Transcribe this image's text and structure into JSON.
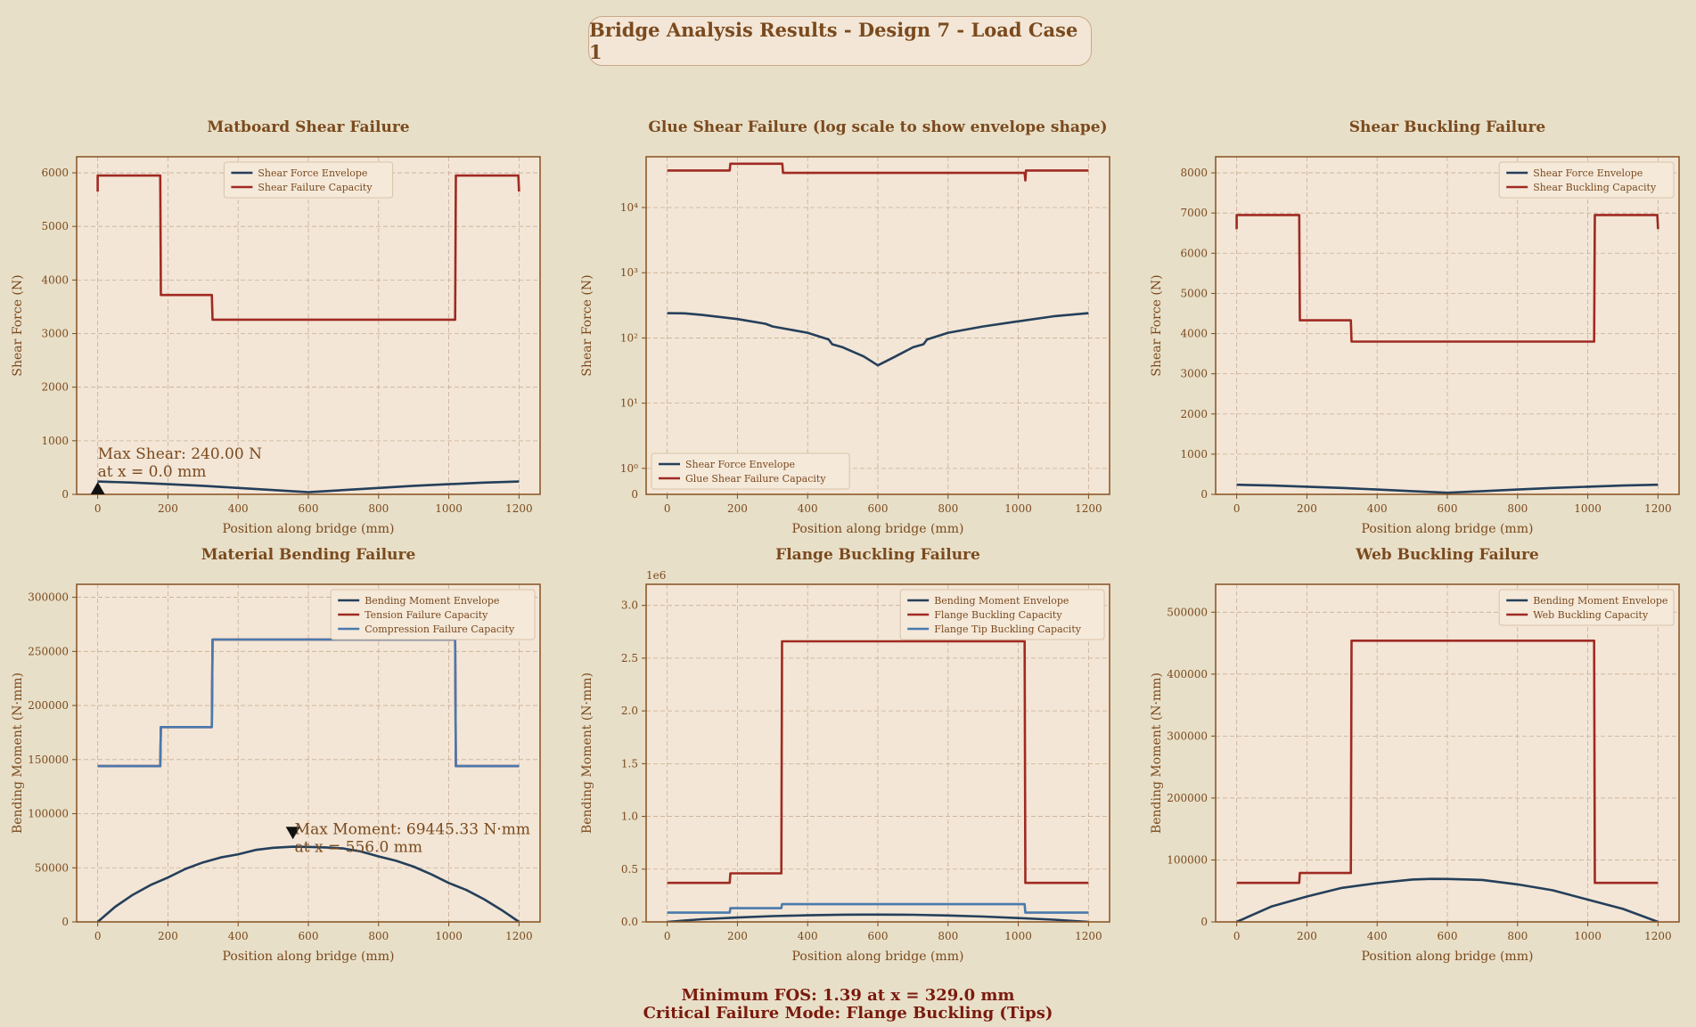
{
  "page": {
    "title": "Bridge Analysis Results - Design 7 - Load Case 1",
    "footer_line1": "Minimum FOS: 1.39 at x = 329.0 mm",
    "footer_line2": "Critical Failure Mode: Flange Buckling (Tips)"
  },
  "colors": {
    "background": "#e8dfc8",
    "plot_background": "#f3e6d6",
    "envelope": "#253f5b",
    "capacity_red": "#a02a22",
    "capacity_blue": "#4a79ad",
    "text": "#7a4a1e",
    "grid": "#c9ae96"
  },
  "chart_data": [
    {
      "id": "matboard-shear",
      "type": "line",
      "title": "Matboard Shear Failure",
      "xlabel": "Position along bridge (mm)",
      "ylabel": "Shear Force (N)",
      "xlim": [
        -60,
        1260
      ],
      "ylim": [
        0,
        6300
      ],
      "xticks": [
        0,
        200,
        400,
        600,
        800,
        1000,
        1200
      ],
      "yticks": [
        0,
        1000,
        2000,
        3000,
        4000,
        5000,
        6000
      ],
      "ytick_labels": [
        "0",
        "1000",
        "2000",
        "3000",
        "4000",
        "5000",
        "6000"
      ],
      "grid": true,
      "legend_position": "top-center",
      "series": [
        {
          "name": "Shear Force Envelope",
          "color": "#253f5b",
          "x": [
            0,
            100,
            200,
            300,
            400,
            500,
            600,
            700,
            800,
            900,
            1000,
            1100,
            1200
          ],
          "y": [
            240,
            220,
            190,
            160,
            120,
            80,
            40,
            80,
            120,
            160,
            190,
            220,
            240
          ]
        },
        {
          "name": "Shear Failure Capacity",
          "color": "#a02a22",
          "x": [
            0,
            0,
            178,
            180,
            325,
            327,
            355,
            357,
            1018,
            1020,
            1198,
            1200
          ],
          "y": [
            5650,
            5950,
            5950,
            3720,
            3720,
            3260,
            3260,
            3260,
            3260,
            5950,
            5950,
            5650
          ]
        }
      ],
      "annotation": {
        "text_line1": "Max Shear: 240.00 N",
        "text_line2": "at x = 0.0 mm",
        "marker": "up",
        "x": 0,
        "y": 0
      }
    },
    {
      "id": "glue-shear",
      "type": "line",
      "title": "Glue Shear Failure (log scale to show envelope shape)",
      "xlabel": "Position along bridge (mm)",
      "ylabel": "Shear Force (N)",
      "yscale": "log",
      "xlim": [
        -60,
        1260
      ],
      "ylim": [
        0.4,
        60000
      ],
      "xticks": [
        0,
        200,
        400,
        600,
        800,
        1000,
        1200
      ],
      "yticks": [
        1,
        10,
        100,
        1000,
        10000
      ],
      "ytick_labels": [
        "10⁰",
        "10¹",
        "10²",
        "10³",
        "10⁴"
      ],
      "zero_label": "0",
      "grid": true,
      "legend_position": "bottom-left",
      "series": [
        {
          "name": "Shear Force Envelope",
          "color": "#253f5b",
          "x": [
            0,
            50,
            100,
            200,
            280,
            300,
            400,
            460,
            470,
            500,
            560,
            600,
            650,
            700,
            730,
            740,
            800,
            900,
            1000,
            1100,
            1200
          ],
          "y": [
            240,
            238,
            225,
            195,
            165,
            150,
            120,
            95,
            80,
            72,
            52,
            38,
            52,
            72,
            80,
            95,
            120,
            150,
            180,
            215,
            240
          ]
        },
        {
          "name": "Glue Shear Failure Capacity",
          "color": "#a02a22",
          "x": [
            0,
            178,
            180,
            328,
            330,
            1018,
            1020,
            1022,
            1200
          ],
          "y": [
            37000,
            37000,
            47000,
            47000,
            34000,
            34000,
            26000,
            37000,
            37000
          ]
        }
      ]
    },
    {
      "id": "shear-buckling",
      "type": "line",
      "title": "Shear Buckling Failure",
      "xlabel": "Position along bridge (mm)",
      "ylabel": "Shear Force (N)",
      "xlim": [
        -60,
        1260
      ],
      "ylim": [
        0,
        8400
      ],
      "xticks": [
        0,
        200,
        400,
        600,
        800,
        1000,
        1200
      ],
      "yticks": [
        0,
        1000,
        2000,
        3000,
        4000,
        5000,
        6000,
        7000,
        8000
      ],
      "ytick_labels": [
        "0",
        "1000",
        "2000",
        "3000",
        "4000",
        "5000",
        "6000",
        "7000",
        "8000"
      ],
      "grid": true,
      "legend_position": "top-right",
      "series": [
        {
          "name": "Shear Force Envelope",
          "color": "#253f5b",
          "x": [
            0,
            100,
            200,
            300,
            400,
            500,
            600,
            700,
            800,
            900,
            1000,
            1100,
            1200
          ],
          "y": [
            240,
            220,
            190,
            160,
            120,
            80,
            40,
            80,
            120,
            160,
            190,
            220,
            240
          ]
        },
        {
          "name": "Shear Buckling Capacity",
          "color": "#a02a22",
          "x": [
            0,
            0,
            178,
            180,
            325,
            327,
            1018,
            1020,
            1198,
            1200
          ],
          "y": [
            6600,
            6950,
            6950,
            4330,
            4330,
            3800,
            3800,
            6950,
            6950,
            6600
          ]
        }
      ]
    },
    {
      "id": "material-bending",
      "type": "line",
      "title": "Material Bending Failure",
      "xlabel": "Position along bridge (mm)",
      "ylabel": "Bending Moment (N·mm)",
      "xlim": [
        -60,
        1260
      ],
      "ylim": [
        0,
        312000
      ],
      "xticks": [
        0,
        200,
        400,
        600,
        800,
        1000,
        1200
      ],
      "yticks": [
        0,
        50000,
        100000,
        150000,
        200000,
        250000,
        300000
      ],
      "ytick_labels": [
        "0",
        "50000",
        "100000",
        "150000",
        "200000",
        "250000",
        "300000"
      ],
      "grid": true,
      "legend_position": "top-right",
      "series": [
        {
          "name": "Bending Moment Envelope",
          "color": "#253f5b",
          "x": [
            0,
            50,
            100,
            150,
            200,
            250,
            300,
            350,
            400,
            450,
            500,
            556,
            600,
            650,
            700,
            750,
            800,
            850,
            900,
            950,
            1000,
            1050,
            1100,
            1150,
            1200
          ],
          "y": [
            0,
            14000,
            25000,
            34000,
            41000,
            49000,
            55000,
            59500,
            62500,
            66500,
            68500,
            69445,
            69300,
            68800,
            67800,
            65000,
            60500,
            56500,
            51000,
            44000,
            36000,
            29500,
            21000,
            11000,
            0
          ]
        },
        {
          "name": "Tension Failure Capacity",
          "color": "#a02a22",
          "x": [
            0,
            178,
            180,
            325,
            327,
            1018,
            1020,
            1200
          ],
          "y": [
            144000,
            144000,
            180000,
            180000,
            261000,
            261000,
            144000,
            144000
          ]
        },
        {
          "name": "Compression Failure Capacity",
          "color": "#4a79ad",
          "x": [
            0,
            178,
            180,
            325,
            327,
            1018,
            1020,
            1200
          ],
          "y": [
            144000,
            144000,
            180000,
            180000,
            261000,
            261000,
            144000,
            144000
          ]
        }
      ],
      "annotation": {
        "text_line1": "Max Moment: 69445.33 N·mm",
        "text_line2": "at x = 556.0 mm",
        "marker": "down",
        "x": 556,
        "y": 78000
      }
    },
    {
      "id": "flange-buckling",
      "type": "line",
      "title": "Flange Buckling Failure",
      "xlabel": "Position along bridge (mm)",
      "ylabel": "Bending Moment (N·mm)",
      "offset_label": "1e6",
      "xlim": [
        -60,
        1260
      ],
      "ylim": [
        0,
        3200000
      ],
      "xticks": [
        0,
        200,
        400,
        600,
        800,
        1000,
        1200
      ],
      "yticks": [
        0,
        500000,
        1000000,
        1500000,
        2000000,
        2500000,
        3000000
      ],
      "ytick_labels": [
        "0.0",
        "0.5",
        "1.0",
        "1.5",
        "2.0",
        "2.5",
        "3.0"
      ],
      "grid": true,
      "legend_position": "top-right",
      "series": [
        {
          "name": "Bending Moment Envelope",
          "color": "#253f5b",
          "x": [
            0,
            100,
            200,
            300,
            400,
            500,
            556,
            600,
            700,
            800,
            900,
            1000,
            1100,
            1200
          ],
          "y": [
            0,
            25000,
            41000,
            55000,
            62500,
            68500,
            69445,
            69300,
            67800,
            60500,
            51000,
            36000,
            21000,
            0
          ]
        },
        {
          "name": "Flange Buckling Capacity",
          "color": "#a02a22",
          "x": [
            0,
            178,
            180,
            325,
            327,
            1018,
            1020,
            1200
          ],
          "y": [
            370000,
            370000,
            460000,
            460000,
            2660000,
            2660000,
            370000,
            370000
          ]
        },
        {
          "name": "Flange Tip Buckling Capacity",
          "color": "#4a79ad",
          "x": [
            0,
            178,
            180,
            325,
            327,
            1018,
            1020,
            1200
          ],
          "y": [
            88000,
            88000,
            130000,
            130000,
            168000,
            168000,
            88000,
            88000
          ]
        }
      ]
    },
    {
      "id": "web-buckling",
      "type": "line",
      "title": "Web Buckling Failure",
      "xlabel": "Position along bridge (mm)",
      "ylabel": "Bending Moment (N·mm)",
      "xlim": [
        -60,
        1260
      ],
      "ylim": [
        0,
        545000
      ],
      "xticks": [
        0,
        200,
        400,
        600,
        800,
        1000,
        1200
      ],
      "yticks": [
        0,
        100000,
        200000,
        300000,
        400000,
        500000
      ],
      "ytick_labels": [
        "0",
        "100000",
        "200000",
        "300000",
        "400000",
        "500000"
      ],
      "grid": true,
      "legend_position": "top-right",
      "series": [
        {
          "name": "Bending Moment Envelope",
          "color": "#253f5b",
          "x": [
            0,
            100,
            200,
            300,
            400,
            500,
            556,
            600,
            700,
            800,
            900,
            1000,
            1100,
            1200
          ],
          "y": [
            0,
            25000,
            41000,
            55000,
            62500,
            68500,
            69445,
            69300,
            67800,
            60500,
            51000,
            36000,
            21000,
            0
          ]
        },
        {
          "name": "Web Buckling Capacity",
          "color": "#a02a22",
          "x": [
            0,
            178,
            180,
            325,
            327,
            1018,
            1020,
            1200
          ],
          "y": [
            63000,
            63000,
            79000,
            79000,
            454000,
            454000,
            63000,
            63000
          ]
        }
      ]
    }
  ]
}
